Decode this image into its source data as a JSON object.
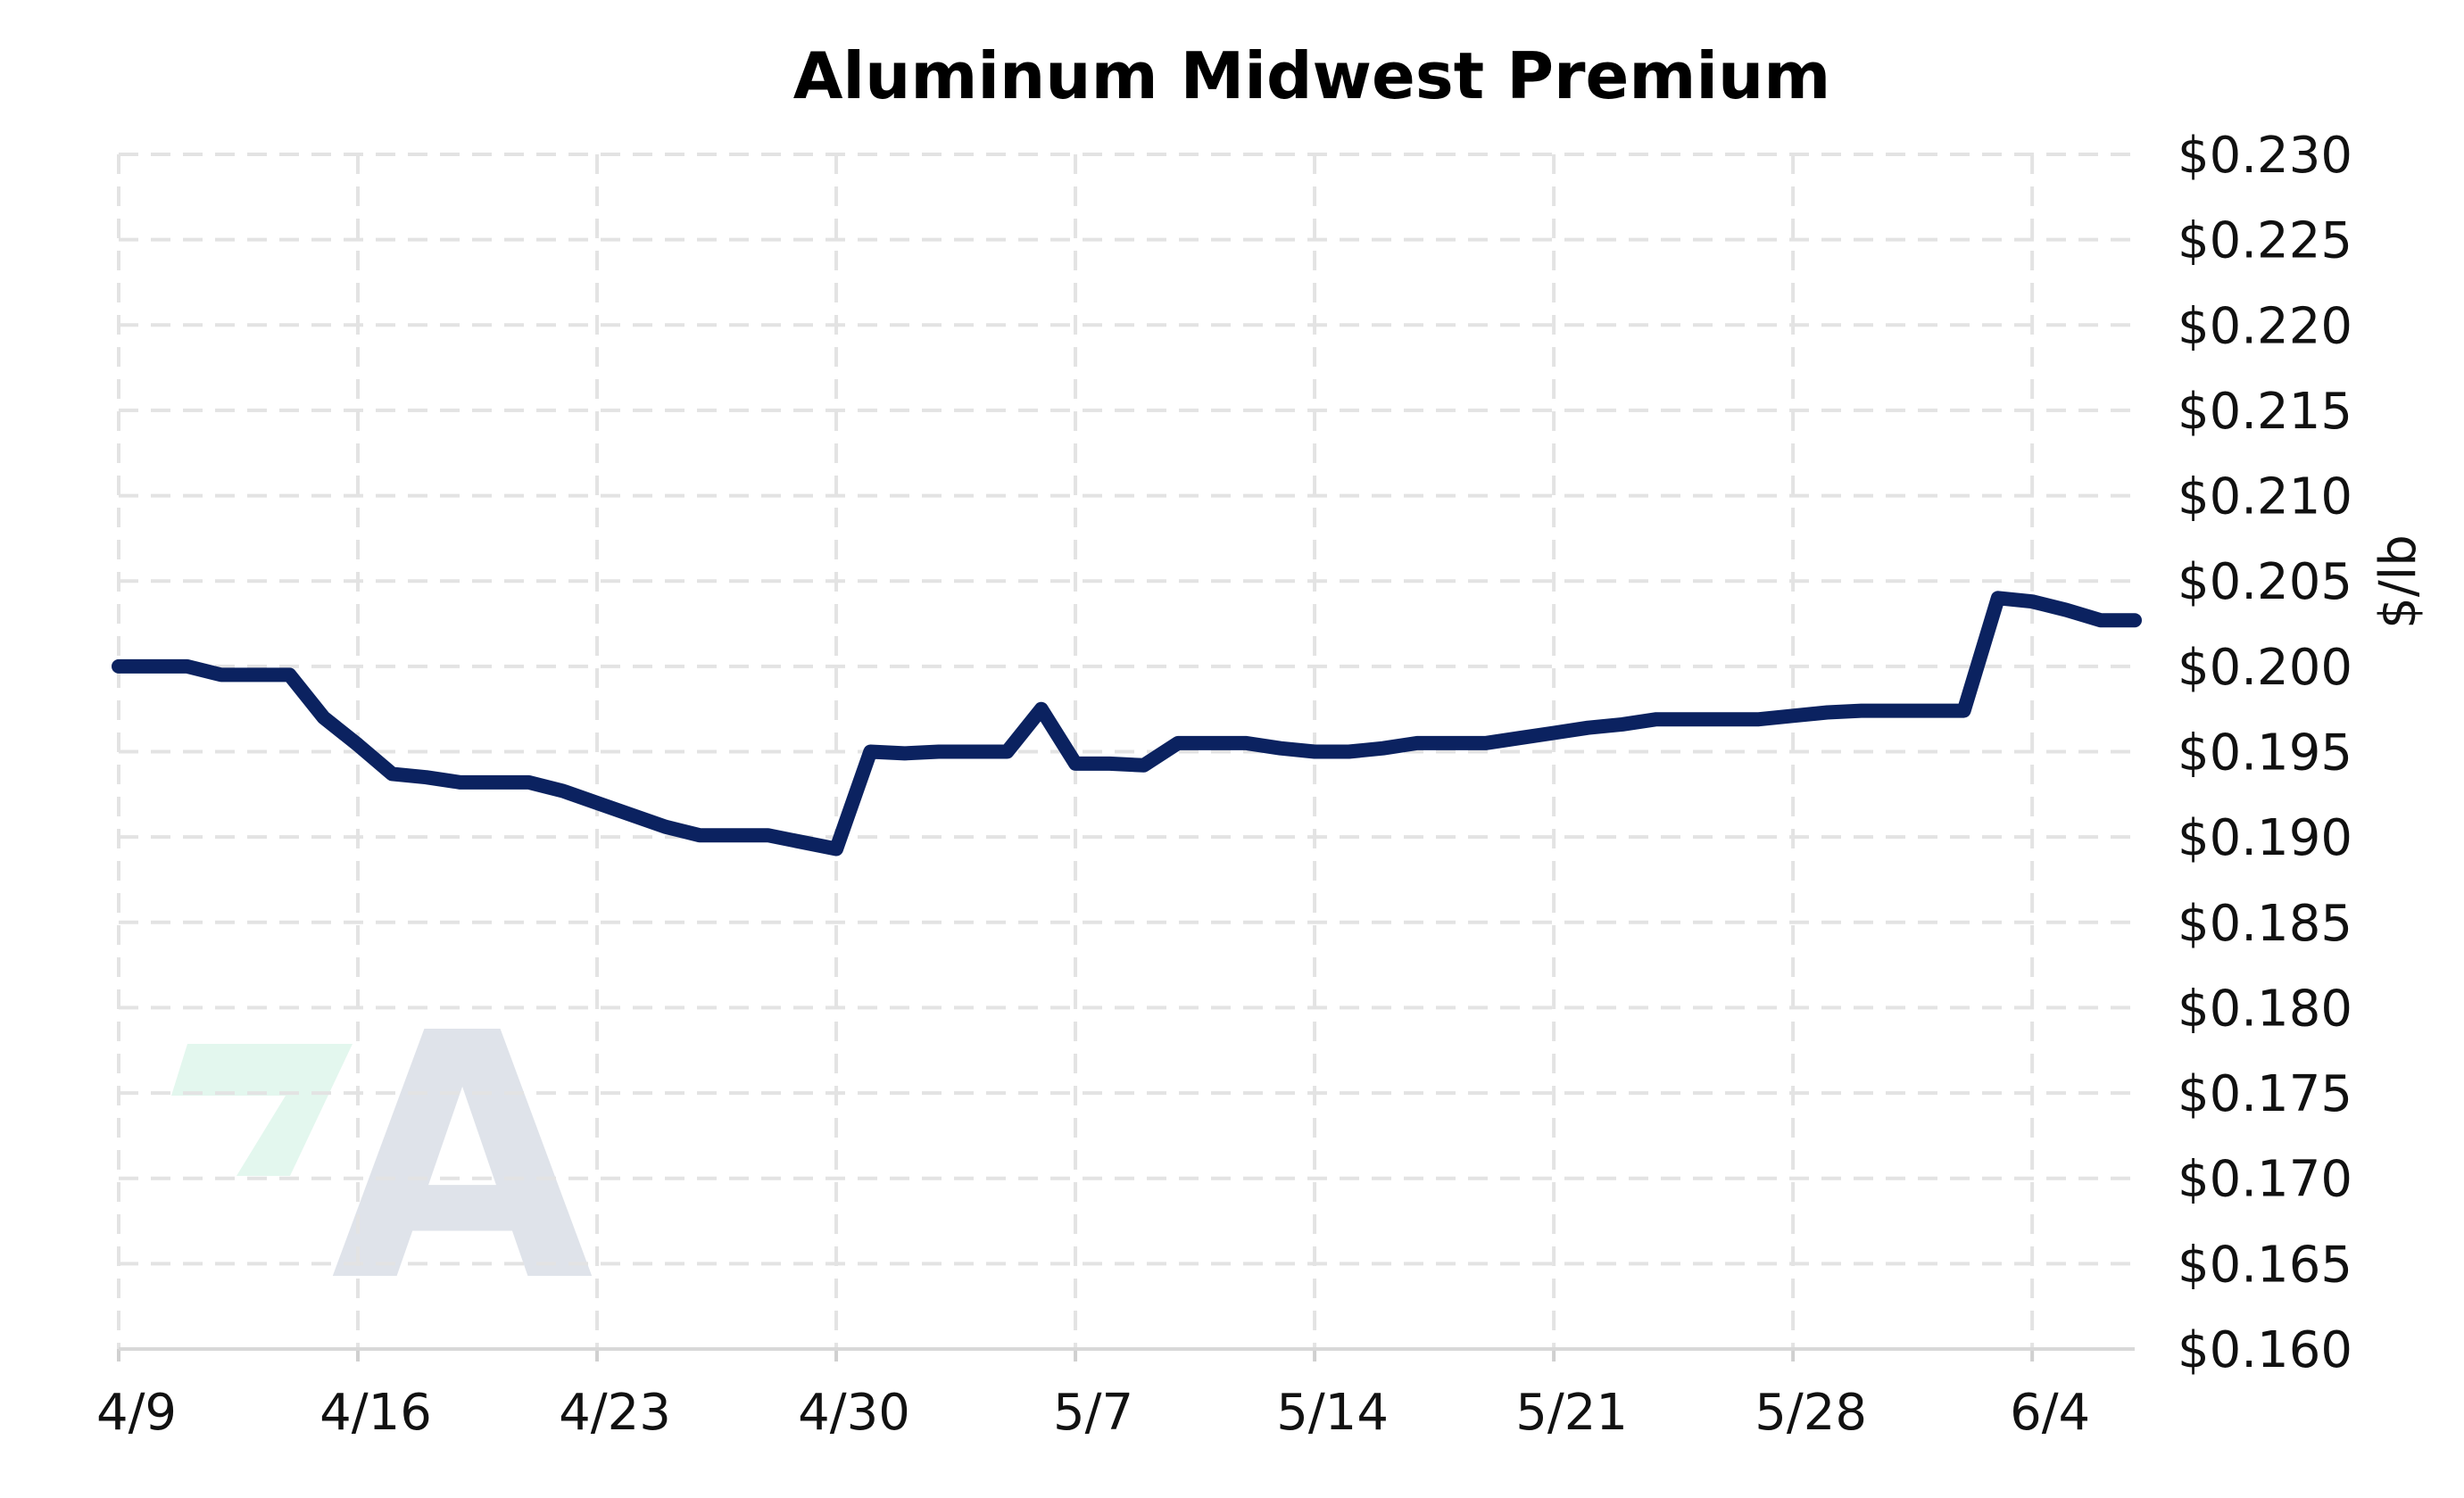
{
  "chart_data": {
    "type": "line",
    "title": "Aluminum Midwest Premium",
    "ylabel": "$/lb",
    "xlabel": "",
    "grid": true,
    "y_axis_side": "right",
    "ylim": [
      0.16,
      0.23
    ],
    "yticks": [
      0.16,
      0.165,
      0.17,
      0.175,
      0.18,
      0.185,
      0.19,
      0.195,
      0.2,
      0.205,
      0.21,
      0.215,
      0.22,
      0.225,
      0.23
    ],
    "ytick_labels": [
      "$0.160",
      "$0.165",
      "$0.170",
      "$0.175",
      "$0.180",
      "$0.185",
      "$0.190",
      "$0.195",
      "$0.200",
      "$0.205",
      "$0.210",
      "$0.215",
      "$0.220",
      "$0.225",
      "$0.230"
    ],
    "xlim": [
      "2024-04-09",
      "2024-06-07"
    ],
    "xticks": [
      "2024-04-09",
      "2024-04-16",
      "2024-04-23",
      "2024-04-30",
      "2024-05-07",
      "2024-05-14",
      "2024-05-21",
      "2024-05-28",
      "2024-06-04"
    ],
    "xtick_labels": [
      "4/9",
      "4/16",
      "4/23",
      "4/30",
      "5/7",
      "5/14",
      "5/21",
      "5/28",
      "6/4"
    ],
    "colors": {
      "series": "#0b2260",
      "grid": "#e3e3e3",
      "logo_green": "#e3f7ee",
      "logo_gray": "#dfe3ea"
    },
    "series": [
      {
        "name": "",
        "x": [
          "2024-04-09",
          "2024-04-10",
          "2024-04-11",
          "2024-04-12",
          "2024-04-13",
          "2024-04-14",
          "2024-04-15",
          "2024-04-16",
          "2024-04-17",
          "2024-04-18",
          "2024-04-19",
          "2024-04-20",
          "2024-04-21",
          "2024-04-22",
          "2024-04-23",
          "2024-04-24",
          "2024-04-25",
          "2024-04-26",
          "2024-04-27",
          "2024-04-28",
          "2024-04-29",
          "2024-04-30",
          "2024-05-01",
          "2024-05-02",
          "2024-05-03",
          "2024-05-04",
          "2024-05-05",
          "2024-05-06",
          "2024-05-07",
          "2024-05-08",
          "2024-05-09",
          "2024-05-10",
          "2024-05-11",
          "2024-05-12",
          "2024-05-13",
          "2024-05-14",
          "2024-05-15",
          "2024-05-16",
          "2024-05-17",
          "2024-05-18",
          "2024-05-19",
          "2024-05-20",
          "2024-05-21",
          "2024-05-22",
          "2024-05-23",
          "2024-05-24",
          "2024-05-25",
          "2024-05-26",
          "2024-05-27",
          "2024-05-28",
          "2024-05-29",
          "2024-05-30",
          "2024-05-31",
          "2024-06-01",
          "2024-06-02",
          "2024-06-03",
          "2024-06-04",
          "2024-06-05",
          "2024-06-06",
          "2024-06-07"
        ],
        "values": [
          0.2,
          0.2,
          0.2,
          0.1995,
          0.1995,
          0.1995,
          0.197,
          0.1954,
          0.1937,
          0.1935,
          0.1932,
          0.1932,
          0.1932,
          0.1927,
          0.192,
          0.1913,
          0.1906,
          0.1901,
          0.1901,
          0.1901,
          0.1897,
          0.1893,
          0.195,
          0.1949,
          0.195,
          0.195,
          0.195,
          0.1975,
          0.1943,
          0.1943,
          0.1942,
          0.1955,
          0.1955,
          0.1955,
          0.1952,
          0.195,
          0.195,
          0.1952,
          0.1955,
          0.1955,
          0.1955,
          0.1958,
          0.1961,
          0.1964,
          0.1966,
          0.1969,
          0.1969,
          0.1969,
          0.1969,
          0.1971,
          0.1973,
          0.1974,
          0.1974,
          0.1974,
          0.1974,
          0.204,
          0.2038,
          0.2033,
          0.2027,
          0.2027
        ]
      }
    ]
  },
  "logo": {
    "letter": "A"
  }
}
